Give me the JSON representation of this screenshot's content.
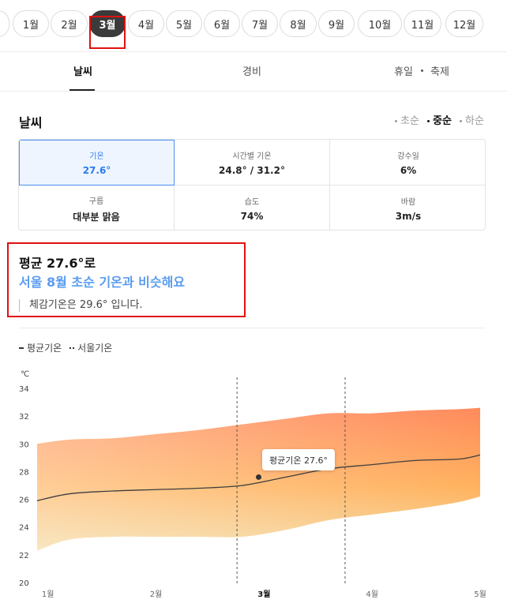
{
  "months": [
    {
      "label": "",
      "left": -18,
      "width": 30
    },
    {
      "label": "1월"
    },
    {
      "label": "2월"
    },
    {
      "label": "3월",
      "active": true
    },
    {
      "label": "4월"
    },
    {
      "label": "5월"
    },
    {
      "label": "6월"
    },
    {
      "label": "7월"
    },
    {
      "label": "8월"
    },
    {
      "label": "9월"
    },
    {
      "label": "10월"
    },
    {
      "label": "11월"
    },
    {
      "label": "12월"
    }
  ],
  "tabs": {
    "weather": "날씨",
    "cost": "경비",
    "holiday": "휴일",
    "festival": "축제"
  },
  "section": {
    "title": "날씨",
    "periods": {
      "early": "초순",
      "mid": "중순",
      "late": "하순"
    }
  },
  "stats": {
    "temp": {
      "label": "기온",
      "value": "27.6°"
    },
    "hourly": {
      "label": "시간별 기온",
      "value": "24.8° / 31.2°"
    },
    "rain_days": {
      "label": "강수일",
      "value": "6%"
    },
    "cloud": {
      "label": "구름",
      "value": "대부분 맑음"
    },
    "humidity": {
      "label": "습도",
      "value": "74%"
    },
    "wind": {
      "label": "바람",
      "value": "3m/s"
    }
  },
  "summary": {
    "line1": "평균 27.6°로",
    "line2": "서울 8월 초순 기온과 비슷해요",
    "note": "체감기온은 29.6° 입니다."
  },
  "legend": {
    "avg": "평균기온",
    "seoul": "서울기온"
  },
  "tooltip": "평균기온 27.6°",
  "colors": {
    "accent": "#2a7bef",
    "highlight": "#5a9cf0",
    "gradient_top": "#ff8a5c",
    "gradient_bottom": "#ffd36b"
  },
  "chart_data": {
    "type": "area",
    "unit": "℃",
    "y_ticks": [
      "34",
      "32",
      "30",
      "28",
      "26",
      "24",
      "22",
      "20"
    ],
    "ylim": [
      20,
      34
    ],
    "x_ticks": [
      {
        "label": "1월",
        "x": 1
      },
      {
        "label": "2월",
        "x": 2
      },
      {
        "label": "3월",
        "x": 3,
        "bold": true
      },
      {
        "label": "4월",
        "x": 4
      },
      {
        "label": "5월",
        "x": 5
      }
    ],
    "xlim": [
      0.9,
      5.0
    ],
    "x": [
      0.9,
      1.2,
      1.6,
      2.0,
      2.4,
      2.8,
      3.2,
      3.6,
      4.0,
      4.4,
      4.8,
      5.0
    ],
    "series": [
      {
        "name": "평균기온",
        "values": [
          25.9,
          26.4,
          26.6,
          26.7,
          26.8,
          27.0,
          27.6,
          28.2,
          28.5,
          28.8,
          28.9,
          29.2
        ]
      }
    ],
    "range_high": [
      30.0,
      30.3,
      30.4,
      30.7,
      31.0,
      31.4,
      31.8,
      32.2,
      32.2,
      32.4,
      32.5,
      32.6
    ],
    "range_low": [
      22.3,
      23.1,
      23.3,
      23.3,
      23.3,
      23.3,
      23.8,
      24.5,
      24.9,
      25.3,
      25.8,
      26.2
    ],
    "reference_lines_x": [
      2.75,
      3.75
    ],
    "marker": {
      "x": 2.95,
      "y": 27.6
    }
  }
}
